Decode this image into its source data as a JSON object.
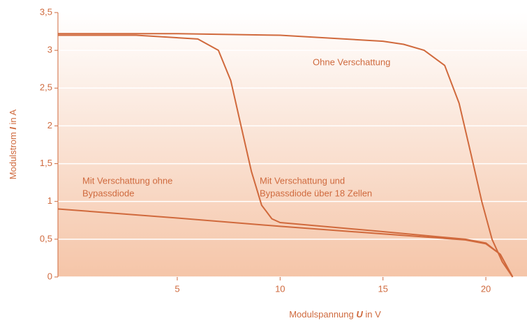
{
  "chart_data": {
    "type": "line",
    "x_label": [
      "Modulspannung ",
      "U",
      " in V"
    ],
    "y_label": [
      "Modulstrom ",
      "I",
      " in A"
    ],
    "xlim": [
      -0.8,
      22
    ],
    "ylim": [
      0,
      3.5
    ],
    "xticks": [
      5,
      10,
      15,
      20
    ],
    "yticks": [
      0,
      {
        "value": 0.5,
        "label": "0,5"
      },
      1,
      {
        "value": 1.5,
        "label": "1,5"
      },
      2,
      {
        "value": 2.5,
        "label": "2,5"
      },
      3,
      {
        "value": 3.5,
        "label": "3,5"
      }
    ],
    "grid": true,
    "annotations": [
      [
        "Ohne Verschattung"
      ],
      [
        "Mit Verschattung ohne",
        "Bypassdiode"
      ],
      [
        "Mit Verschattung und",
        "Bypassdiode über 18 Zellen"
      ]
    ],
    "series": [
      {
        "color": "#d0693c",
        "x": [
          -0.8,
          5,
          10,
          15,
          16,
          17,
          18,
          18.7,
          19.3,
          19.8,
          20.3,
          20.8,
          21.3
        ],
        "values": [
          3.22,
          3.22,
          3.2,
          3.12,
          3.08,
          3.0,
          2.8,
          2.3,
          1.6,
          1.0,
          0.5,
          0.2,
          0
        ]
      },
      {
        "color": "#d0693c",
        "x": [
          -0.8,
          3,
          6,
          7,
          7.6,
          8.1,
          8.6,
          9.1,
          9.6,
          10,
          15,
          19,
          20,
          20.7,
          21.3
        ],
        "values": [
          3.2,
          3.2,
          3.15,
          3.0,
          2.6,
          2.0,
          1.4,
          0.95,
          0.77,
          0.72,
          0.6,
          0.5,
          0.45,
          0.3,
          0
        ]
      },
      {
        "color": "#d0693c",
        "x": [
          -0.8,
          5,
          10,
          15,
          19,
          20,
          20.7,
          21.3
        ],
        "values": [
          0.9,
          0.78,
          0.67,
          0.57,
          0.49,
          0.44,
          0.3,
          0
        ]
      }
    ]
  }
}
